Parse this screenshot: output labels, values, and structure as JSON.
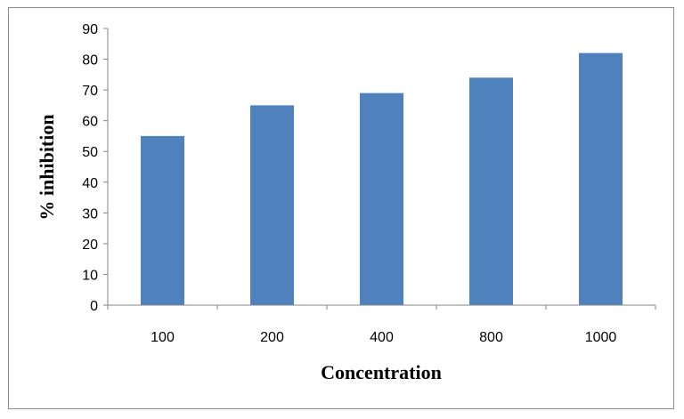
{
  "chart_data": {
    "type": "bar",
    "categories": [
      "100",
      "200",
      "400",
      "800",
      "1000"
    ],
    "values": [
      55,
      65,
      69,
      74,
      82
    ],
    "xlabel": "Concentration",
    "ylabel": "% inhibition",
    "ylim": [
      0,
      90
    ],
    "yticks": [
      0,
      10,
      20,
      30,
      40,
      50,
      60,
      70,
      80,
      90
    ],
    "grid": false,
    "legend": "none",
    "colors": {
      "bar": "#4f81bd",
      "axis": "#868686"
    }
  }
}
